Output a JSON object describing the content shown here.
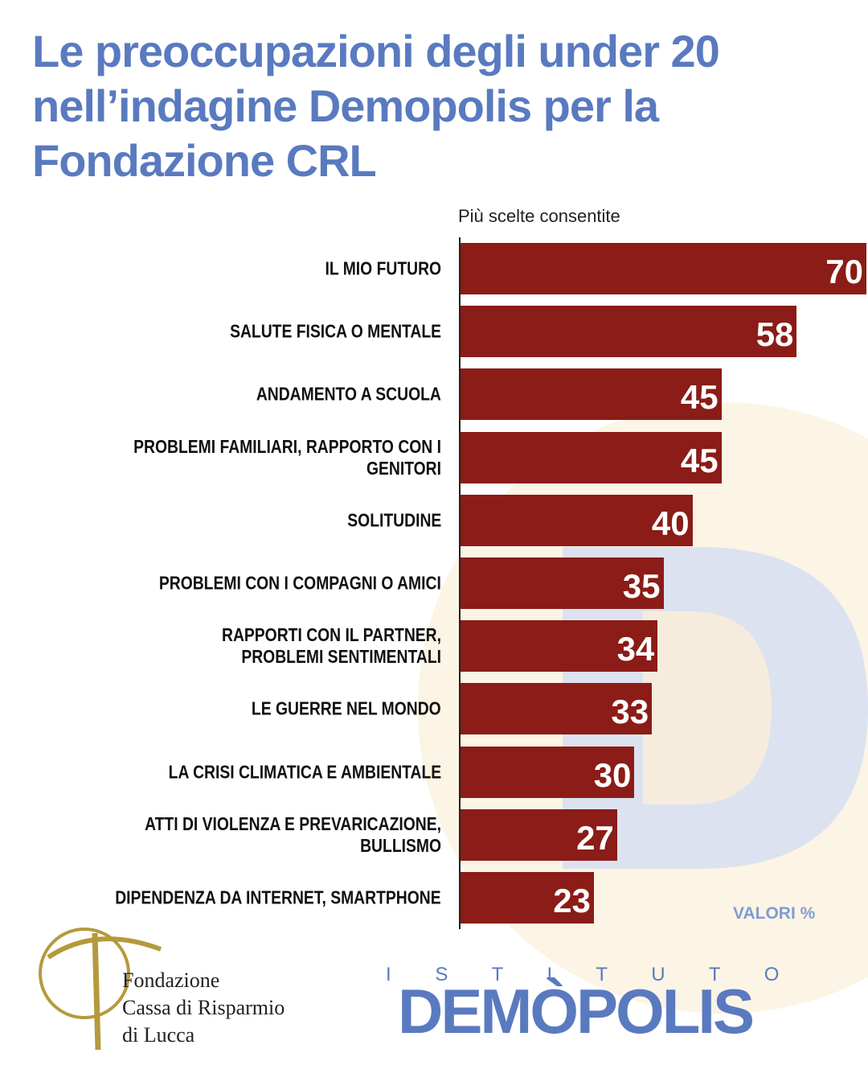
{
  "chart_data": {
    "type": "bar",
    "orientation": "horizontal",
    "title": "Le preoccupazioni degli under 20 nell’indagine Demopolis per la Fondazione CRL",
    "subtitle": "Più scelte consentite",
    "note": "VALORI %",
    "color": "#8b1c17",
    "categories": [
      "IL MIO FUTURO",
      "SALUTE FISICA O MENTALE",
      "ANDAMENTO A SCUOLA",
      "PROBLEMI FAMILIARI, RAPPORTO CON I GENITORI",
      "SOLITUDINE",
      "PROBLEMI CON I COMPAGNI O AMICI",
      "RAPPORTI CON IL PARTNER,\nPROBLEMI SENTIMENTALI",
      "LE GUERRE NEL MONDO",
      "LA CRISI CLIMATICA E AMBIENTALE",
      "ATTI DI VIOLENZA E PREVARICAZIONE, BULLISMO",
      "DIPENDENZA DA INTERNET, SMARTPHONE"
    ],
    "values": [
      70,
      58,
      45,
      45,
      40,
      35,
      34,
      33,
      30,
      27,
      23
    ]
  },
  "logos": {
    "fondazione": [
      "Fondazione",
      "Cassa di Risparmio",
      "di Lucca"
    ],
    "istituto": "I S T I T U T O",
    "demopolis": "DEMÒPOLIS"
  }
}
